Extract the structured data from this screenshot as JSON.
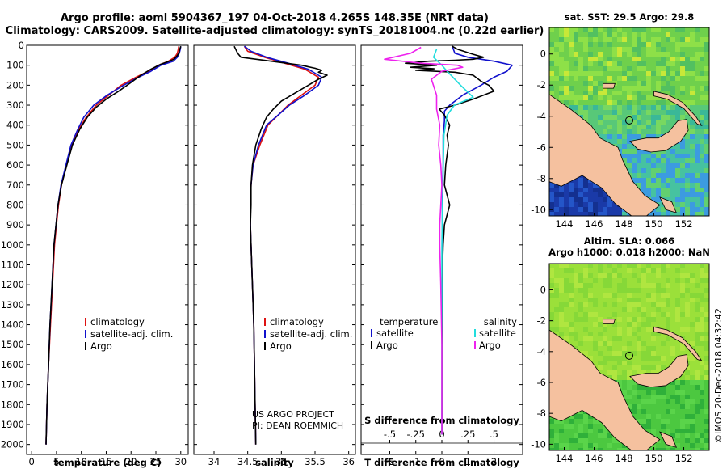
{
  "header": {
    "line1": "Argo profile: aoml 5904367_197 04-Oct-2018 4.265S 148.35E (NRT data)",
    "line2": "Climatology: CARS2009. Satellite-adjusted climatology: synTS_20181004.nc (0.22d earlier)"
  },
  "credits": {
    "project": "US ARGO PROJECT",
    "pi": "PI: DEAN ROEMMICH",
    "imos": "©IMOS 20-Dec-2018 04:32:42"
  },
  "colors": {
    "climatology": "#dd1111",
    "satellite": "#1111cc",
    "argo": "#000000",
    "satellite_salinity": "#22dddd",
    "argo_salinity": "#ee22ee",
    "land": "#f5c19f"
  },
  "chart_data": [
    {
      "type": "line",
      "name": "temperature-profile",
      "xlabel": "temperature (deg C)",
      "ylabel": "",
      "xlim": [
        -1,
        31.5
      ],
      "ylim": [
        2050,
        0
      ],
      "xticks": [
        0,
        5,
        10,
        15,
        20,
        25,
        30
      ],
      "yticks": [
        0,
        100,
        200,
        300,
        400,
        500,
        600,
        700,
        800,
        900,
        1000,
        1100,
        1200,
        1300,
        1400,
        1500,
        1600,
        1700,
        1800,
        1900,
        2000
      ],
      "legend": [
        "climatology",
        "satellite-adj. clim.",
        "Argo"
      ],
      "series": [
        {
          "name": "climatology",
          "color": "#dd1111",
          "points": [
            [
              29.6,
              5
            ],
            [
              29.5,
              20
            ],
            [
              29.3,
              40
            ],
            [
              28.8,
              60
            ],
            [
              27.5,
              80
            ],
            [
              25.5,
              100
            ],
            [
              23.5,
              130
            ],
            [
              21,
              160
            ],
            [
              18,
              200
            ],
            [
              15.5,
              250
            ],
            [
              13,
              300
            ],
            [
              11,
              360
            ],
            [
              9.5,
              420
            ],
            [
              8,
              500
            ],
            [
              7,
              600
            ],
            [
              6,
              700
            ],
            [
              5.4,
              800
            ],
            [
              5,
              900
            ],
            [
              4.6,
              1000
            ],
            [
              4.2,
              1200
            ],
            [
              3.8,
              1400
            ],
            [
              3.4,
              1600
            ],
            [
              3.1,
              1800
            ],
            [
              2.9,
              2000
            ]
          ]
        },
        {
          "name": "satellite-adj. clim.",
          "color": "#1111cc",
          "points": [
            [
              30,
              5
            ],
            [
              29.9,
              20
            ],
            [
              29.7,
              40
            ],
            [
              29.3,
              60
            ],
            [
              28.5,
              80
            ],
            [
              26,
              100
            ],
            [
              24,
              130
            ],
            [
              21.5,
              160
            ],
            [
              18.5,
              200
            ],
            [
              15.2,
              250
            ],
            [
              12.5,
              300
            ],
            [
              10.5,
              360
            ],
            [
              9.3,
              420
            ],
            [
              7.9,
              500
            ],
            [
              6.9,
              600
            ],
            [
              5.9,
              700
            ],
            [
              5.3,
              800
            ],
            [
              4.9,
              900
            ],
            [
              4.5,
              1000
            ],
            [
              4.1,
              1200
            ],
            [
              3.7,
              1400
            ],
            [
              3.4,
              1600
            ],
            [
              3.1,
              1800
            ],
            [
              2.9,
              2000
            ]
          ]
        },
        {
          "name": "Argo",
          "color": "#000000",
          "points": [
            [
              30,
              5
            ],
            [
              29.8,
              20
            ],
            [
              29.6,
              40
            ],
            [
              29.2,
              55
            ],
            [
              28.6,
              70
            ],
            [
              27.5,
              82
            ],
            [
              26,
              95
            ],
            [
              24,
              120
            ],
            [
              22,
              150
            ],
            [
              19.8,
              190
            ],
            [
              17.5,
              230
            ],
            [
              15,
              270
            ],
            [
              13,
              310
            ],
            [
              11.2,
              360
            ],
            [
              9.7,
              420
            ],
            [
              8.2,
              500
            ],
            [
              7.1,
              600
            ],
            [
              6,
              700
            ],
            [
              5.3,
              800
            ],
            [
              4.9,
              900
            ],
            [
              4.5,
              1000
            ],
            [
              4.1,
              1200
            ],
            [
              3.7,
              1400
            ],
            [
              3.4,
              1600
            ],
            [
              3.1,
              1800
            ],
            [
              2.9,
              2000
            ]
          ]
        }
      ]
    },
    {
      "type": "line",
      "name": "salinity-profile",
      "xlabel": "salinity",
      "ylabel": "",
      "xlim": [
        33.7,
        36.1
      ],
      "ylim": [
        2050,
        0
      ],
      "xticks": [
        34,
        34.5,
        35,
        35.5,
        36
      ],
      "legend": [
        "climatology",
        "satellite-adj. clim.",
        "Argo"
      ],
      "series": [
        {
          "name": "climatology",
          "color": "#dd1111",
          "points": [
            [
              34.45,
              5
            ],
            [
              34.5,
              30
            ],
            [
              34.75,
              60
            ],
            [
              35.05,
              90
            ],
            [
              35.35,
              120
            ],
            [
              35.55,
              160
            ],
            [
              35.5,
              200
            ],
            [
              35.3,
              250
            ],
            [
              35.1,
              300
            ],
            [
              34.95,
              350
            ],
            [
              34.8,
              400
            ],
            [
              34.68,
              500
            ],
            [
              34.58,
              600
            ],
            [
              34.55,
              700
            ],
            [
              34.54,
              800
            ],
            [
              34.54,
              900
            ],
            [
              34.55,
              1000
            ],
            [
              34.57,
              1200
            ],
            [
              34.59,
              1400
            ],
            [
              34.6,
              1600
            ],
            [
              34.61,
              1800
            ],
            [
              34.62,
              2000
            ]
          ]
        },
        {
          "name": "satellite-adj. clim.",
          "color": "#1111cc",
          "points": [
            [
              34.45,
              5
            ],
            [
              34.55,
              30
            ],
            [
              34.78,
              60
            ],
            [
              35.1,
              90
            ],
            [
              35.4,
              120
            ],
            [
              35.6,
              160
            ],
            [
              35.55,
              200
            ],
            [
              35.35,
              250
            ],
            [
              35.12,
              300
            ],
            [
              34.95,
              350
            ],
            [
              34.78,
              400
            ],
            [
              34.66,
              500
            ],
            [
              34.58,
              600
            ],
            [
              34.55,
              700
            ],
            [
              34.54,
              800
            ],
            [
              34.54,
              900
            ],
            [
              34.55,
              1000
            ],
            [
              34.57,
              1200
            ],
            [
              34.59,
              1400
            ],
            [
              34.6,
              1600
            ],
            [
              34.61,
              1800
            ],
            [
              34.62,
              2000
            ]
          ]
        },
        {
          "name": "Argo",
          "color": "#000000",
          "points": [
            [
              34.3,
              5
            ],
            [
              34.35,
              40
            ],
            [
              34.4,
              60
            ],
            [
              34.85,
              80
            ],
            [
              35.3,
              100
            ],
            [
              35.5,
              115
            ],
            [
              35.6,
              125
            ],
            [
              35.55,
              135
            ],
            [
              35.68,
              150
            ],
            [
              35.55,
              170
            ],
            [
              35.4,
              200
            ],
            [
              35.2,
              240
            ],
            [
              35.0,
              280
            ],
            [
              34.88,
              320
            ],
            [
              34.78,
              360
            ],
            [
              34.7,
              420
            ],
            [
              34.62,
              500
            ],
            [
              34.57,
              600
            ],
            [
              34.55,
              700
            ],
            [
              34.55,
              800
            ],
            [
              34.54,
              900
            ],
            [
              34.55,
              1000
            ],
            [
              34.57,
              1200
            ],
            [
              34.59,
              1400
            ],
            [
              34.6,
              1600
            ],
            [
              34.61,
              1800
            ],
            [
              34.62,
              2000
            ]
          ]
        }
      ]
    },
    {
      "type": "line",
      "name": "difference-profile",
      "xlabel": "T difference from climatology",
      "x2label": "S difference from climatology",
      "xlim": [
        -3.1,
        3.1
      ],
      "ylim": [
        2050,
        0
      ],
      "xticks": [
        -2,
        -1,
        0,
        1,
        2
      ],
      "x2ticks": [
        -0.5,
        -0.25,
        0,
        0.25,
        0.5
      ],
      "legend_temperature_title": "temperature",
      "legend_salinity_title": "salinity",
      "legend_temperature": [
        "satellite",
        "Argo"
      ],
      "legend_salinity": [
        "satellite",
        "Argo"
      ],
      "series": [
        {
          "name": "T satellite",
          "color": "#1111cc",
          "points": [
            [
              0.4,
              5
            ],
            [
              0.5,
              40
            ],
            [
              1,
              60
            ],
            [
              2,
              80
            ],
            [
              2.7,
              100
            ],
            [
              2.5,
              130
            ],
            [
              2,
              160
            ],
            [
              1.5,
              200
            ],
            [
              0.8,
              250
            ],
            [
              0.3,
              300
            ],
            [
              0.1,
              330
            ],
            [
              0.1,
              380
            ],
            [
              0.05,
              450
            ],
            [
              0.05,
              600
            ],
            [
              0.02,
              800
            ],
            [
              0.02,
              1000
            ],
            [
              0.01,
              1500
            ],
            [
              0,
              1950
            ]
          ]
        },
        {
          "name": "T Argo",
          "color": "#000000",
          "points": [
            [
              0.4,
              5
            ],
            [
              0.6,
              20
            ],
            [
              1.2,
              45
            ],
            [
              1.6,
              60
            ],
            [
              1.2,
              70
            ],
            [
              0.5,
              75
            ],
            [
              -0.5,
              80
            ],
            [
              -1.4,
              90
            ],
            [
              -0.2,
              100
            ],
            [
              -1.2,
              110
            ],
            [
              -0.3,
              118
            ],
            [
              -1,
              125
            ],
            [
              0.5,
              135
            ],
            [
              1.2,
              150
            ],
            [
              1.5,
              180
            ],
            [
              1.8,
              200
            ],
            [
              2.0,
              230
            ],
            [
              1.2,
              270
            ],
            [
              0.5,
              300
            ],
            [
              -0.1,
              320
            ],
            [
              0.1,
              350
            ],
            [
              0.3,
              400
            ],
            [
              0.2,
              450
            ],
            [
              0.25,
              500
            ],
            [
              0.15,
              600
            ],
            [
              0.1,
              700
            ],
            [
              0.3,
              800
            ],
            [
              0.1,
              900
            ],
            [
              0.05,
              1000
            ],
            [
              0.0,
              1200
            ],
            [
              0.02,
              1500
            ],
            [
              0.02,
              1950
            ]
          ]
        },
        {
          "name": "S satellite",
          "color": "#22dddd",
          "points": [
            [
              -0.05,
              20
            ],
            [
              -0.08,
              60
            ],
            [
              0,
              100
            ],
            [
              0.05,
              130
            ],
            [
              0.18,
              200
            ],
            [
              0.3,
              260
            ],
            [
              0.12,
              300
            ],
            [
              0.05,
              350
            ],
            [
              0.02,
              450
            ],
            [
              0.01,
              700
            ],
            [
              0,
              1000
            ],
            [
              0,
              1500
            ],
            [
              0,
              1950
            ]
          ]
        },
        {
          "name": "S Argo",
          "color": "#ee22ee",
          "points": [
            [
              -0.2,
              10
            ],
            [
              -0.3,
              40
            ],
            [
              -0.55,
              70
            ],
            [
              -0.2,
              90
            ],
            [
              0.15,
              100
            ],
            [
              0.2,
              110
            ],
            [
              0,
              130
            ],
            [
              -0.1,
              170
            ],
            [
              -0.05,
              250
            ],
            [
              -0.05,
              320
            ],
            [
              -0.02,
              400
            ],
            [
              -0.03,
              500
            ],
            [
              -0.01,
              600
            ],
            [
              0,
              700
            ],
            [
              -0.01,
              800
            ],
            [
              -0.02,
              900
            ],
            [
              -0.02,
              1000
            ],
            [
              -0.01,
              1200
            ],
            [
              0,
              1500
            ],
            [
              0,
              1950
            ]
          ]
        }
      ]
    },
    {
      "type": "heatmap",
      "name": "sst-map",
      "title": "sat. SST: 29.5 Argo: 29.8",
      "xlim": [
        143,
        153.7
      ],
      "ylim": [
        -10.4,
        1.7
      ],
      "xticks": [
        144,
        146,
        148,
        150,
        152
      ],
      "yticks": [
        0,
        -2,
        -4,
        -6,
        -8,
        -10
      ],
      "argo_position": [
        148.35,
        -4.265
      ]
    },
    {
      "type": "heatmap",
      "name": "sla-map",
      "title_line1": "Altim. SLA: 0.066",
      "title_line2": "Argo h1000: 0.018 h2000: NaN",
      "xlim": [
        143,
        153.7
      ],
      "ylim": [
        -10.4,
        1.7
      ],
      "xticks": [
        144,
        146,
        148,
        150,
        152
      ],
      "yticks": [
        0,
        -2,
        -4,
        -6,
        -8,
        -10
      ],
      "argo_position": [
        148.35,
        -4.265
      ]
    }
  ]
}
